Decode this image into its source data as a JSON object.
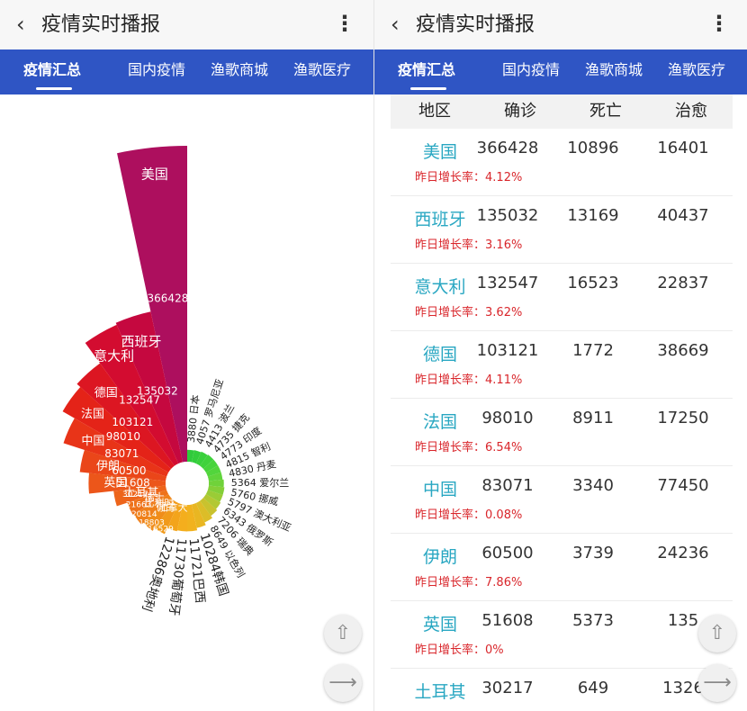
{
  "left": {
    "title": "疫情实时播报",
    "tabs": [
      {
        "label": "疫情汇总",
        "active": true
      },
      {
        "label": "国内疫情",
        "active": false
      },
      {
        "label": "渔歌商城",
        "active": false
      },
      {
        "label": "渔歌医疗",
        "active": false
      }
    ]
  },
  "right": {
    "title": "疫情实时播报",
    "tabs": [
      {
        "label": "疫情汇总",
        "active": true
      },
      {
        "label": "国内疫情",
        "active": false
      },
      {
        "label": "渔歌商城",
        "active": false
      },
      {
        "label": "渔歌医疗",
        "active": false
      }
    ],
    "table": {
      "headers": [
        "地区",
        "确诊",
        "死亡",
        "治愈"
      ],
      "growth_prefix": "昨日增长率：",
      "rows": [
        {
          "region": "美国",
          "confirmed": "366428",
          "deaths": "10896",
          "cured": "16401",
          "growth": "4.12%"
        },
        {
          "region": "西班牙",
          "confirmed": "135032",
          "deaths": "13169",
          "cured": "40437",
          "growth": "3.16%"
        },
        {
          "region": "意大利",
          "confirmed": "132547",
          "deaths": "16523",
          "cured": "22837",
          "growth": "3.62%"
        },
        {
          "region": "德国",
          "confirmed": "103121",
          "deaths": "1772",
          "cured": "38669",
          "growth": "4.11%"
        },
        {
          "region": "法国",
          "confirmed": "98010",
          "deaths": "8911",
          "cured": "17250",
          "growth": "6.54%"
        },
        {
          "region": "中国",
          "confirmed": "83071",
          "deaths": "3340",
          "cured": "77450",
          "growth": "0.08%"
        },
        {
          "region": "伊朗",
          "confirmed": "60500",
          "deaths": "3739",
          "cured": "24236",
          "growth": "7.86%"
        },
        {
          "region": "英国",
          "confirmed": "51608",
          "deaths": "5373",
          "cured": "135",
          "growth": "0%"
        },
        {
          "region": "土耳其",
          "confirmed": "30217",
          "deaths": "649",
          "cured": "1326",
          "growth": ""
        }
      ]
    }
  },
  "icons": {
    "back": "chevron-left-icon",
    "more": "more-vertical-icon",
    "scroll_top": "arrow-up-icon",
    "share": "share-icon"
  },
  "chart_data": {
    "type": "nightingale-rose",
    "categories": [
      "美国",
      "西班牙",
      "意大利",
      "德国",
      "法国",
      "中国",
      "伊朗",
      "英国",
      "土耳其",
      "瑞士",
      "比利时",
      "荷兰",
      "加拿大",
      "奥地利",
      "葡萄牙",
      "巴西",
      "韩国",
      "以色列",
      "瑞典",
      "俄罗斯",
      "澳大利亚",
      "挪威",
      "爱尔兰",
      "丹麦",
      "智利",
      "印度",
      "捷克",
      "波兰",
      "罗马尼亚",
      "日本"
    ],
    "values": [
      366428,
      135032,
      132547,
      103121,
      98010,
      83071,
      60500,
      51608,
      30217,
      21663,
      20814,
      18803,
      16529,
      12286,
      11730,
      11721,
      10284,
      8649,
      7206,
      6343,
      5797,
      5760,
      5364,
      4830,
      4815,
      4773,
      4735,
      4413,
      4057,
      3880
    ],
    "value_labels": [
      "366428",
      "135032",
      "132547",
      "103121",
      "98010",
      "83071",
      "60500",
      "51608",
      "30217",
      "21663",
      "20814",
      "18803",
      "16529",
      "12286",
      "11730",
      "11721",
      "10284",
      "8649",
      "7206",
      "6343",
      "5797",
      "5760",
      "5364",
      "4830",
      "4815",
      "4773",
      "4735",
      "4413",
      "4057",
      "3880"
    ],
    "outer_labels": [
      "12286奥地利",
      "11730葡萄牙",
      "11721巴西",
      "10284韩国",
      "8649 以色列",
      "7206 瑞典",
      "6343 俄罗斯",
      "5797 澳大利亚",
      "5760 挪威",
      "5364 爱尔兰",
      "4830 丹麦",
      "4815 智利",
      "4773 印度",
      "4735 捷克",
      "4413 波兰",
      "4057 罗马尼亚",
      "3880 日本"
    ],
    "colors": [
      "#ad0f5e",
      "#c5083f",
      "#d30c30",
      "#dc1622",
      "#e42318",
      "#e83418",
      "#ea4619",
      "#ec561a",
      "#ed641a",
      "#ee721a",
      "#ef801a",
      "#f08d1a",
      "#f19a1a",
      "#f3a41b",
      "#f4ae1d",
      "#f1b21e",
      "#e9b622",
      "#dcbd28",
      "#c9c22e",
      "#b3c833",
      "#9acc36",
      "#84cf38",
      "#70d23a",
      "#60d43b",
      "#52d53c",
      "#47d43c",
      "#3fd23c",
      "#39d03c",
      "#33cd3c",
      "#30ca3c"
    ]
  }
}
